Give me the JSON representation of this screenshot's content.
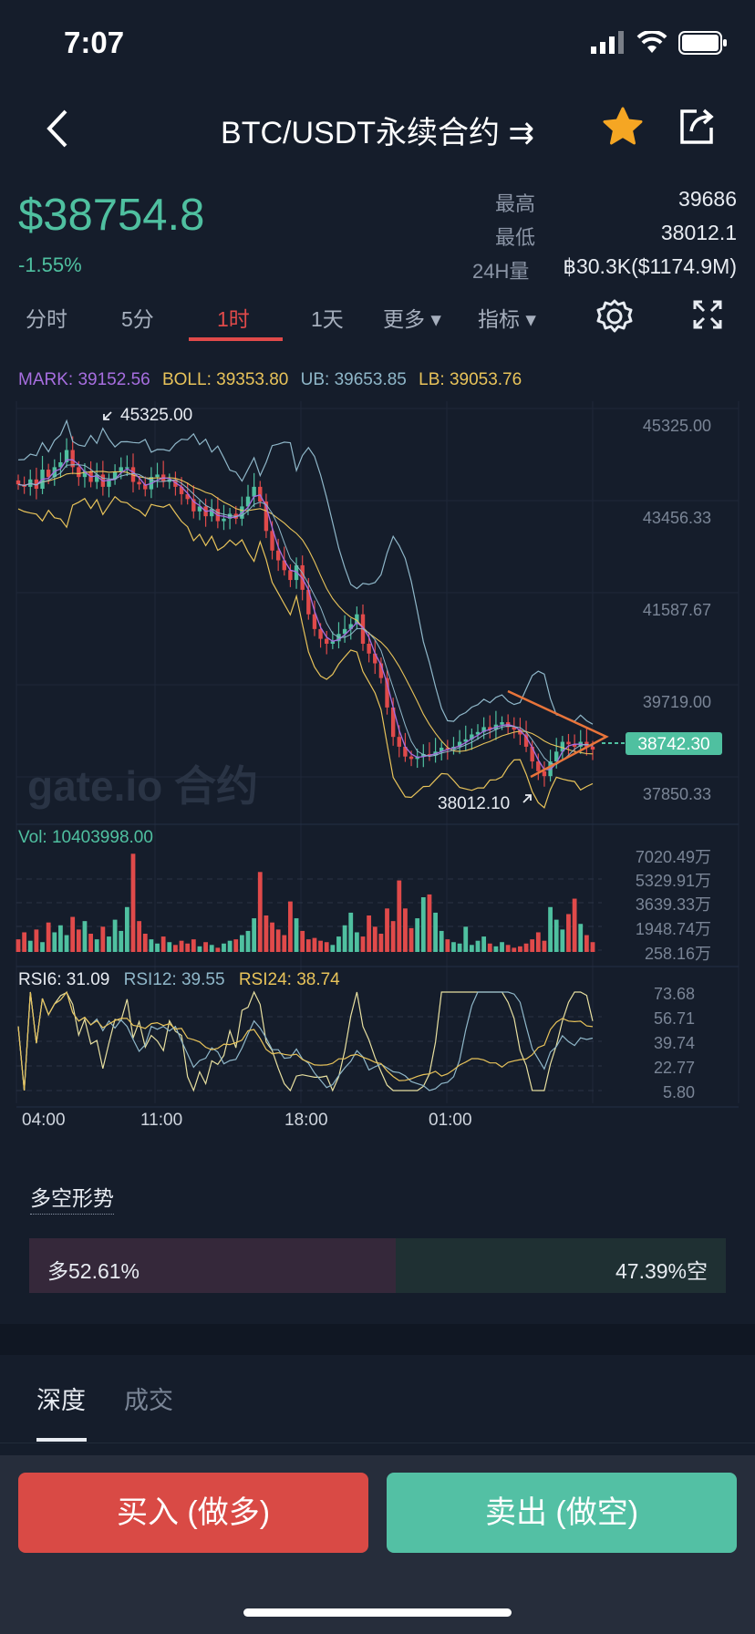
{
  "status": {
    "time": "7:07"
  },
  "header": {
    "title": "BTC/USDT永续合约 ⇉",
    "back_icon": "chevron-left-icon",
    "star_icon": "star-icon",
    "share_icon": "share-icon",
    "star_color": "#f5a623"
  },
  "ticker": {
    "price": "$38754.8",
    "change": "-1.55%",
    "high_label": "最高",
    "high_value": "39686",
    "low_label": "最低",
    "low_value": "38012.1",
    "vol_label": "24H量",
    "vol_value": "฿30.3K($1174.9M)"
  },
  "tabs": [
    {
      "label": "分时"
    },
    {
      "label": "5分"
    },
    {
      "label": "1时",
      "active": true
    },
    {
      "label": "1天"
    },
    {
      "label": "更多 ▾"
    },
    {
      "label": "指标 ▾"
    }
  ],
  "chart_data": {
    "type": "candlestick",
    "legend": {
      "mark": "MARK: 39152.56",
      "boll": "BOLL: 39353.80",
      "ub": "UB: 39653.85",
      "lb": "LB: 39053.76"
    },
    "price_axis": [
      "45325.00",
      "43456.33",
      "41587.67",
      "39719.00",
      "37850.33"
    ],
    "price_range": [
      37850.33,
      45325.0
    ],
    "high_marker": "45325.00",
    "low_marker": "38012.10",
    "last_price": "38742.30",
    "watermark": "gate.io 合约",
    "x_labels": [
      "04:00",
      "11:00",
      "18:00",
      "01:00"
    ],
    "closes": [
      44150,
      44100,
      44250,
      44060,
      44450,
      44300,
      44500,
      44600,
      44850,
      44500,
      44300,
      44420,
      44200,
      44350,
      44100,
      44250,
      44400,
      44500,
      44500,
      44200,
      44150,
      44050,
      44300,
      44350,
      44200,
      44250,
      44100,
      43950,
      43850,
      43600,
      43700,
      43500,
      43650,
      43400,
      43450,
      43550,
      43450,
      43700,
      43900,
      44100,
      43800,
      43200,
      42800,
      42600,
      42400,
      42200,
      42500,
      42000,
      41500,
      41200,
      41000,
      40900,
      40950,
      41100,
      41200,
      41300,
      41500,
      40900,
      40700,
      40500,
      40200,
      39600,
      39000,
      38800,
      38600,
      38550,
      38600,
      38650,
      38620,
      38700,
      38780,
      38750,
      38800,
      38900,
      38950,
      39050,
      39100,
      39200,
      39150,
      39250,
      39300,
      39200,
      39150,
      39050,
      38800,
      38500,
      38300,
      38200,
      38500,
      38700,
      38900,
      38850,
      38800,
      38900,
      38800,
      38742
    ],
    "volume": {
      "label": "Vol: 10403998.00",
      "axis": [
        "7020.49万",
        "5329.91万",
        "3639.33万",
        "1948.74万",
        "258.16万"
      ],
      "max": 7020.49,
      "values": [
        900,
        1400,
        800,
        1600,
        700,
        2100,
        1400,
        1900,
        1200,
        2500,
        1600,
        2200,
        1300,
        900,
        1800,
        1100,
        2300,
        1500,
        3200,
        7000,
        2200,
        1300,
        900,
        600,
        1100,
        700,
        500,
        800,
        600,
        900,
        400,
        700,
        500,
        300,
        600,
        800,
        900,
        1200,
        1500,
        2400,
        5700,
        2600,
        2100,
        1600,
        1200,
        3600,
        2400,
        1500,
        900,
        1000,
        800,
        700,
        500,
        1100,
        1900,
        2800,
        1400,
        1100,
        2600,
        1800,
        1300,
        3100,
        2200,
        5100,
        3100,
        1700,
        2400,
        3900,
        4100,
        2800,
        1500,
        900,
        700,
        600,
        1800,
        500,
        800,
        1100,
        600,
        400,
        700,
        500,
        300,
        400,
        600,
        900,
        1400,
        800,
        3200,
        2300,
        1600,
        2700,
        3800,
        2000,
        1200,
        700
      ]
    },
    "rsi": {
      "rsi6": "RSI6: 31.09",
      "rsi12": "RSI12: 39.55",
      "rsi24": "RSI24: 38.74",
      "axis": [
        "73.68",
        "56.71",
        "39.74",
        "22.77",
        "5.80"
      ],
      "range": [
        5.8,
        73.68
      ]
    }
  },
  "long_short": {
    "title": "多空形势",
    "long": "多52.61%",
    "short": "47.39%空",
    "long_ratio": 0.5261
  },
  "bottom_tabs": {
    "depth": "深度",
    "trades": "成交"
  },
  "actions": {
    "buy": "买入 (做多)",
    "sell": "卖出 (做空)"
  },
  "colors": {
    "up": "#4fc0a0",
    "down": "#e04a4a",
    "ma_yellow": "#e8c35a",
    "ma_blue": "#8fb7c9",
    "ma_purple": "#a76ee0"
  }
}
